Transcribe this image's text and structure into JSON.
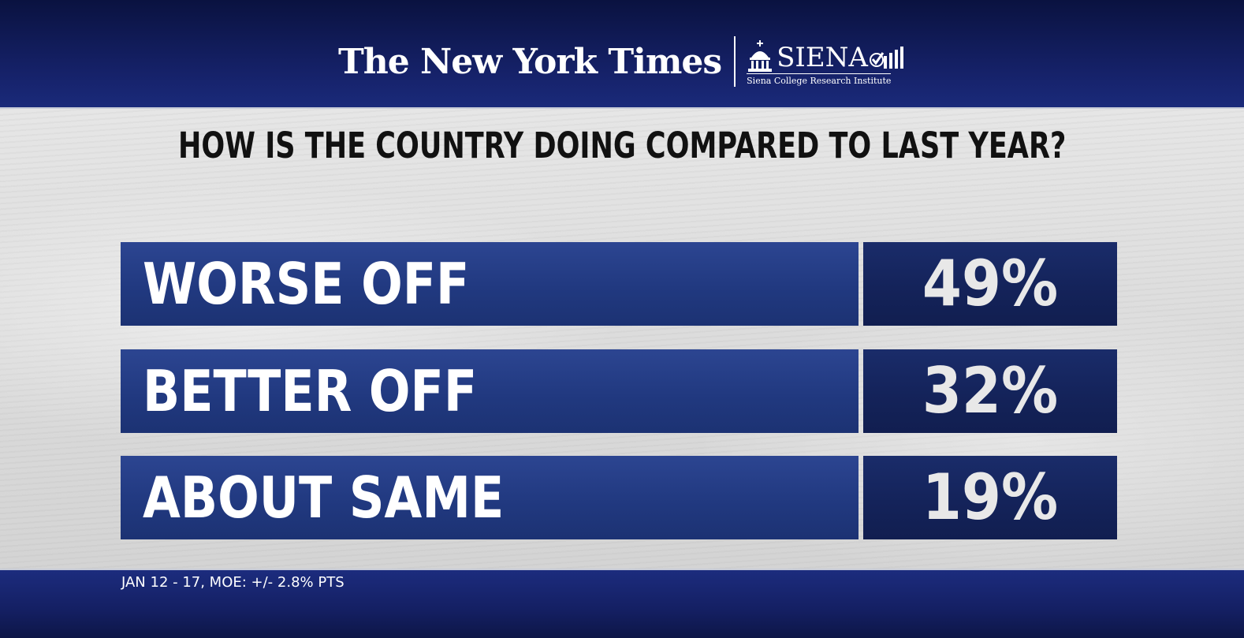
{
  "branding": {
    "nyt_logo": "The New York Times",
    "siena_name": "SIENA",
    "siena_tagline": "Siena College Research Institute"
  },
  "headline": "HOW IS THE COUNTRY DOING COMPARED TO LAST YEAR?",
  "footer_note": "JAN 12 - 17, MOE: +/- 2.8% PTS",
  "colors": {
    "top_bar": "#16226a",
    "label_box": "#233b82",
    "value_box": "#15245c",
    "panel": "#dcdcdc"
  },
  "chart_data": {
    "type": "table",
    "title": "HOW IS THE COUNTRY DOING COMPARED TO LAST YEAR?",
    "categories": [
      "WORSE OFF",
      "BETTER OFF",
      "ABOUT SAME"
    ],
    "values": [
      49,
      32,
      19
    ],
    "value_labels": [
      "49%",
      "32%",
      "19%"
    ],
    "unit": "%"
  }
}
